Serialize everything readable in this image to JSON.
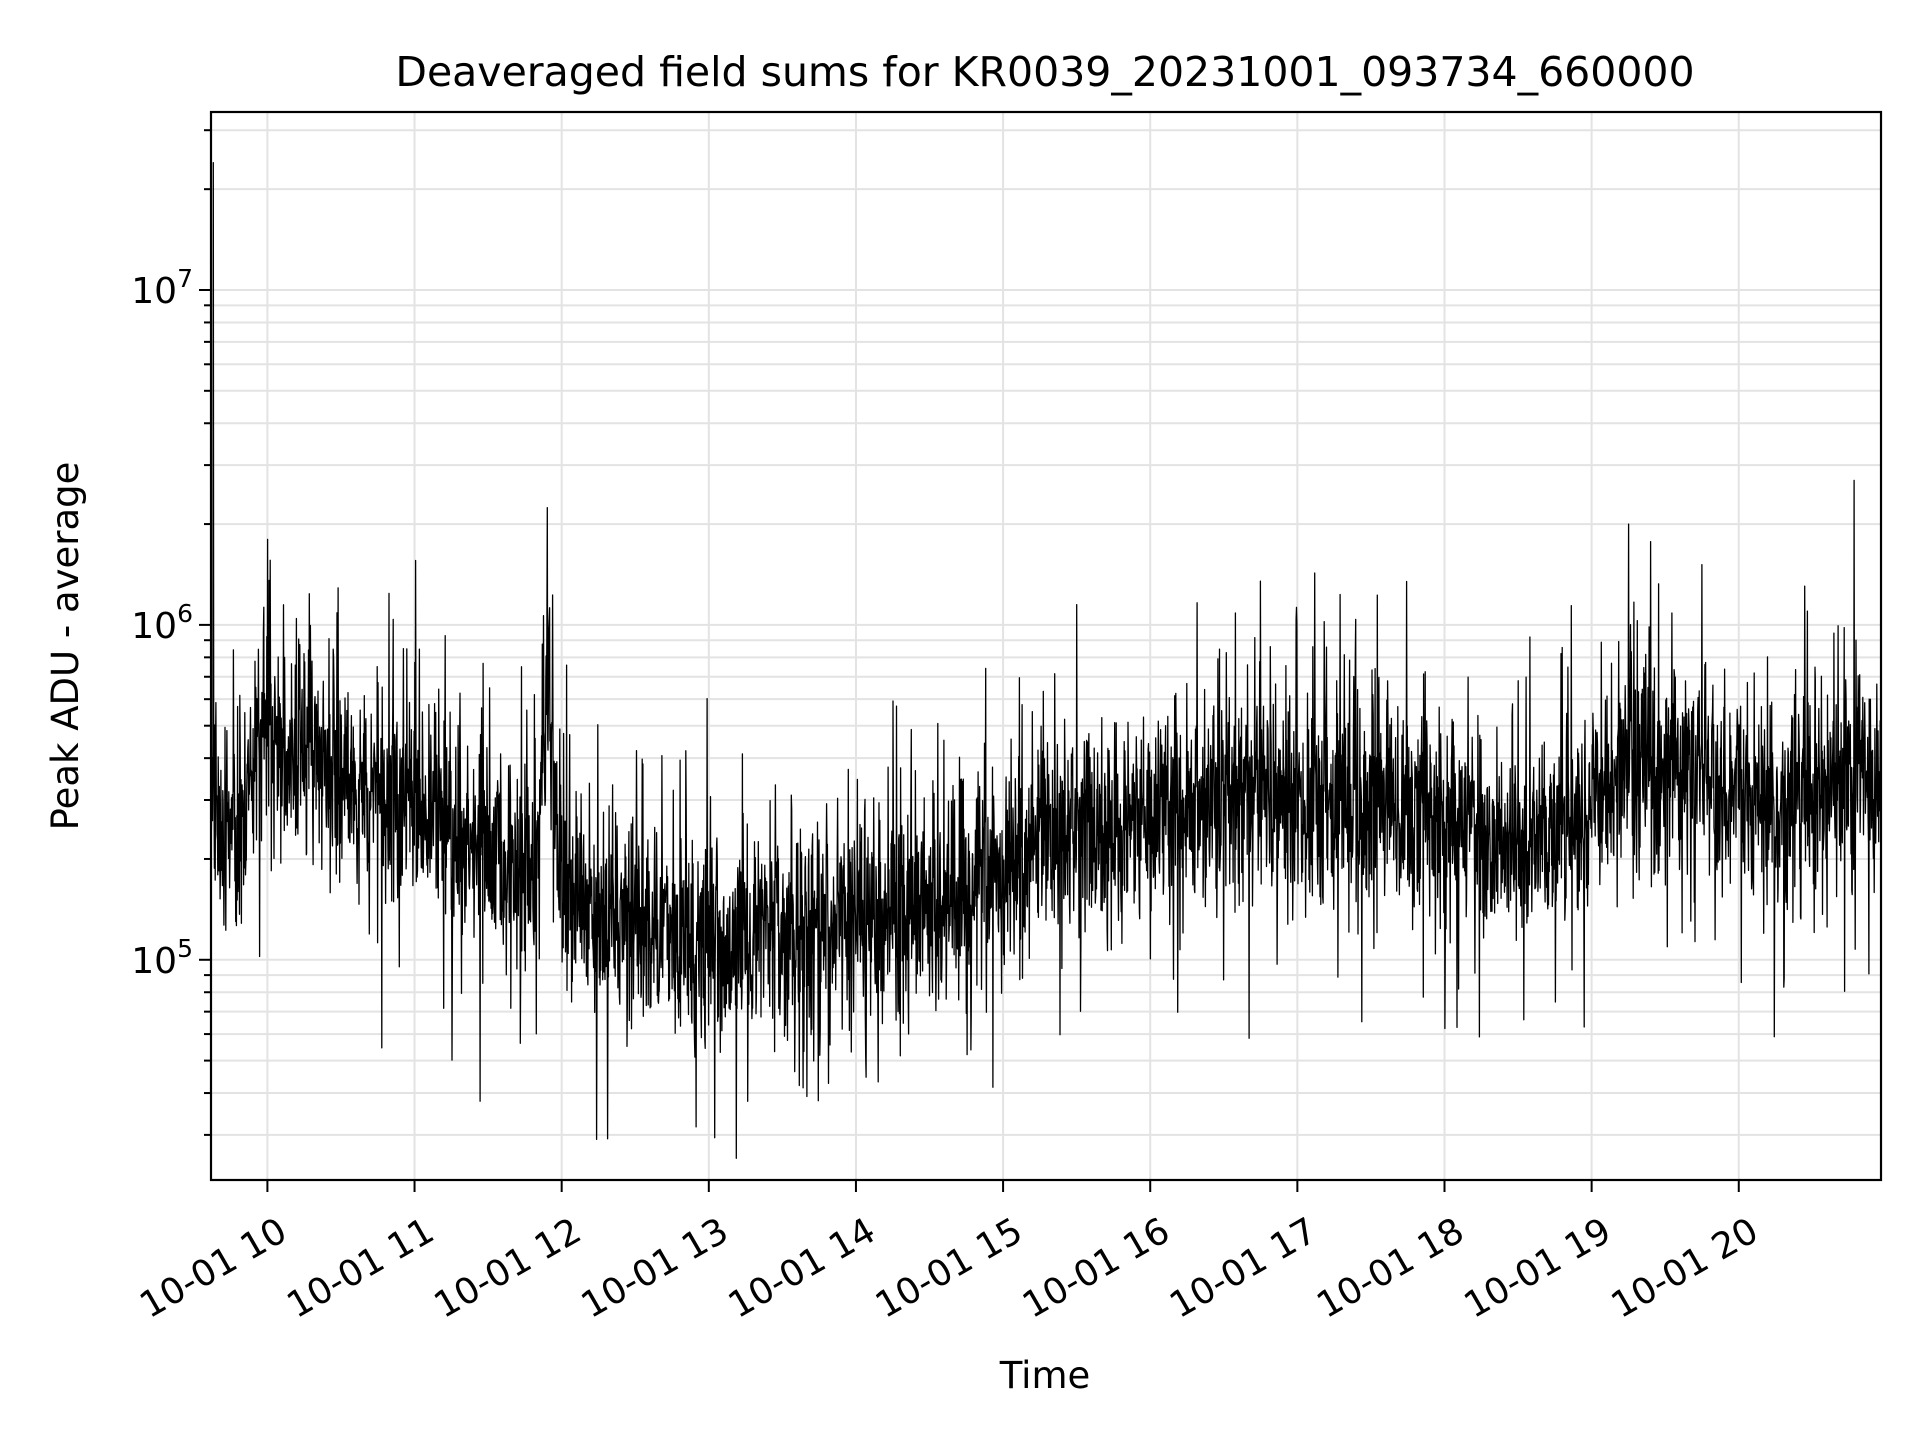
{
  "chart_data": {
    "type": "line",
    "title": "Deaveraged field sums for KR0039_20231001_093734_660000",
    "xlabel": "Time",
    "ylabel": "Peak ADU - average",
    "yscale": "log",
    "grid": true,
    "legend": "none",
    "line_color": "#000000",
    "xlim": [
      "2023-10-01 09:37",
      "2023-10-01 20:58"
    ],
    "ylim": [
      22000,
      34000000
    ],
    "x_ticks": [
      "10-01 10",
      "10-01 11",
      "10-01 12",
      "10-01 13",
      "10-01 14",
      "10-01 15",
      "10-01 16",
      "10-01 17",
      "10-01 18",
      "10-01 19",
      "10-01 20"
    ],
    "y_ticks": [
      {
        "value": 100000,
        "base": "10",
        "exp": "5"
      },
      {
        "value": 1000000,
        "base": "10",
        "exp": "6"
      },
      {
        "value": 10000000,
        "base": "10",
        "exp": "7"
      }
    ],
    "series": [
      {
        "x": [
          "2023-10-01 09:37",
          "2023-10-01 09:40",
          "2023-10-01 09:45",
          "2023-10-01 09:50",
          "2023-10-01 09:55",
          "2023-10-01 09:58",
          "2023-10-01 10:00",
          "2023-10-01 10:05",
          "2023-10-01 10:10",
          "2023-10-01 10:20",
          "2023-10-01 10:30",
          "2023-10-01 10:40",
          "2023-10-01 10:50",
          "2023-10-01 11:00",
          "2023-10-01 11:10",
          "2023-10-01 11:20",
          "2023-10-01 11:30",
          "2023-10-01 11:40",
          "2023-10-01 11:50",
          "2023-10-01 11:54",
          "2023-10-01 12:00",
          "2023-10-01 12:15",
          "2023-10-01 12:30",
          "2023-10-01 12:45",
          "2023-10-01 13:00",
          "2023-10-01 13:15",
          "2023-10-01 13:30",
          "2023-10-01 13:45",
          "2023-10-01 14:00",
          "2023-10-01 14:15",
          "2023-10-01 14:30",
          "2023-10-01 14:45",
          "2023-10-01 15:00",
          "2023-10-01 15:15",
          "2023-10-01 15:30",
          "2023-10-01 15:45",
          "2023-10-01 16:00",
          "2023-10-01 16:15",
          "2023-10-01 16:30",
          "2023-10-01 16:45",
          "2023-10-01 17:00",
          "2023-10-01 17:15",
          "2023-10-01 17:30",
          "2023-10-01 17:45",
          "2023-10-01 18:00",
          "2023-10-01 18:15",
          "2023-10-01 18:30",
          "2023-10-01 18:45",
          "2023-10-01 19:00",
          "2023-10-01 19:15",
          "2023-10-01 19:30",
          "2023-10-01 19:45",
          "2023-10-01 20:00",
          "2023-10-01 20:15",
          "2023-10-01 20:30",
          "2023-10-01 20:45",
          "2023-10-01 20:58"
        ],
        "y": [
          300000,
          250000,
          220000,
          260000,
          320000,
          600000,
          500000,
          450000,
          420000,
          380000,
          360000,
          330000,
          300000,
          290000,
          270000,
          230000,
          200000,
          190000,
          200000,
          700000,
          160000,
          140000,
          130000,
          120000,
          110000,
          110000,
          115000,
          125000,
          135000,
          140000,
          150000,
          160000,
          180000,
          240000,
          260000,
          250000,
          260000,
          280000,
          300000,
          310000,
          300000,
          300000,
          290000,
          280000,
          250000,
          240000,
          230000,
          230000,
          280000,
          350000,
          420000,
          380000,
          300000,
          280000,
          320000,
          340000,
          360000
        ]
      }
    ],
    "annotations": [
      {
        "x": "2023-10-01 09:38",
        "y": 24000000
      },
      {
        "x": "2023-10-01 10:00",
        "y": 1800000
      },
      {
        "x": "2023-10-01 11:54",
        "y": 1000000
      },
      {
        "x": "2023-10-01 15:30",
        "y": 1150000
      },
      {
        "x": "2023-10-01 16:45",
        "y": 1350000
      },
      {
        "x": "2023-10-01 19:15",
        "y": 2000000
      },
      {
        "x": "2023-10-01 20:47",
        "y": 2700000
      }
    ]
  }
}
